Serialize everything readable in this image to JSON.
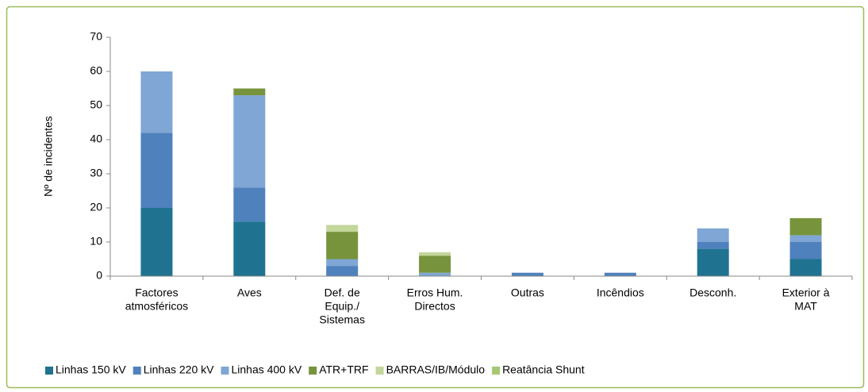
{
  "chart_data": {
    "type": "bar",
    "stacked": true,
    "y_label": "Nº de incidentes",
    "categories": [
      [
        "Factores",
        "atmosféricos"
      ],
      [
        "Aves"
      ],
      [
        "Def. de",
        "Equip./",
        "Sistemas"
      ],
      [
        "Erros Hum.",
        "Directos"
      ],
      [
        "Outras"
      ],
      [
        "Incêndios"
      ],
      [
        "Desconh."
      ],
      [
        "Exterior à",
        "MAT"
      ]
    ],
    "series": [
      {
        "name": "Linhas 150 kV",
        "color": "#1f7390",
        "values": [
          20,
          16,
          0,
          0,
          0,
          0,
          8,
          5
        ]
      },
      {
        "name": "Linhas 220 kV",
        "color": "#4f81bd",
        "values": [
          22,
          10,
          3,
          0,
          1,
          1,
          2,
          5
        ]
      },
      {
        "name": "Linhas 400 kV",
        "color": "#7fa6d4",
        "values": [
          18,
          27,
          2,
          1,
          0,
          0,
          4,
          2
        ]
      },
      {
        "name": "ATR+TRF",
        "color": "#77933c",
        "values": [
          0,
          2,
          8,
          5,
          0,
          0,
          0,
          5
        ]
      },
      {
        "name": "BARRAS/IB/Módulo",
        "color": "#c3d69b",
        "values": [
          0,
          0,
          2,
          1,
          0,
          0,
          0,
          0
        ]
      },
      {
        "name": "Reatância Shunt",
        "color": "#a6c872",
        "values": [
          0,
          0,
          0,
          0,
          0,
          0,
          0,
          0
        ]
      }
    ],
    "ylim": [
      0,
      70
    ],
    "yticks": [
      0,
      10,
      20,
      30,
      40,
      50,
      60,
      70
    ],
    "grid": false,
    "legend": "bottom"
  }
}
